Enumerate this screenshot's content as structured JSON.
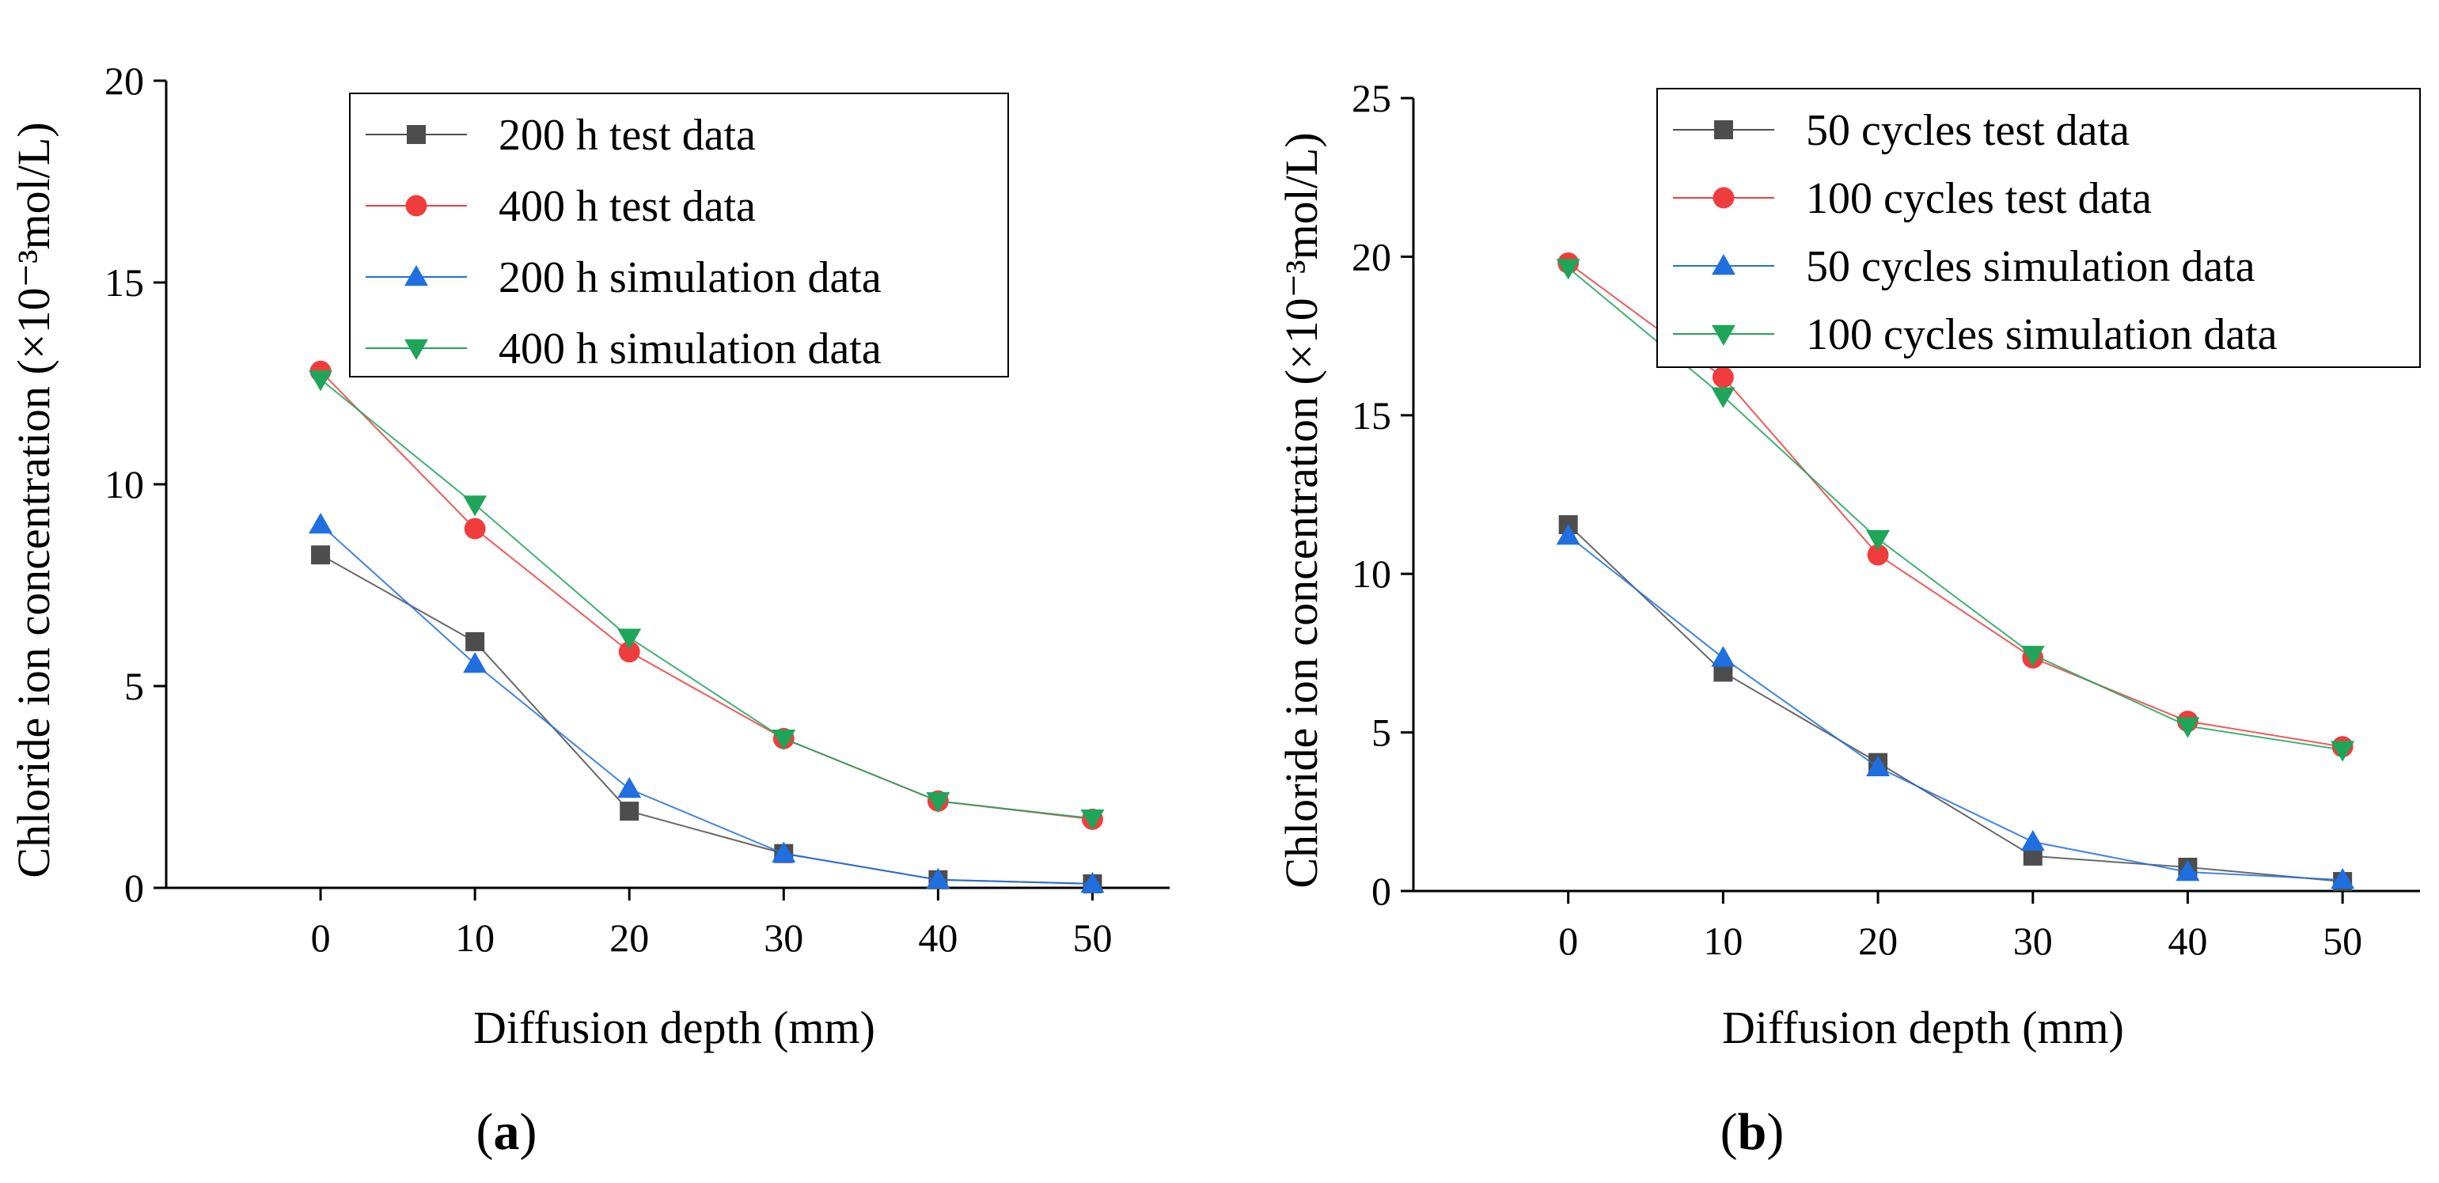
{
  "chart_data": [
    {
      "type": "line",
      "panel_label": "a",
      "xlabel": "Diffusion depth (mm)",
      "ylabel": "Chloride ion concentration (×10⁻³mol/L)",
      "xlim": [
        -10,
        55
      ],
      "ylim": [
        0,
        20
      ],
      "xticks": [
        0,
        10,
        20,
        30,
        40,
        50
      ],
      "yticks": [
        0,
        5,
        10,
        15,
        20
      ],
      "x": [
        0,
        10,
        20,
        30,
        40,
        50
      ],
      "legend_position": "top-right",
      "grid": false,
      "series": [
        {
          "name": "200 h test data",
          "marker": "square",
          "color": "#4d4d4d",
          "values": [
            8.25,
            6.1,
            1.9,
            0.85,
            0.2,
            0.1
          ]
        },
        {
          "name": "400 h test data",
          "marker": "circle",
          "color": "#f03c3c",
          "values": [
            12.8,
            8.9,
            5.85,
            3.7,
            2.15,
            1.7
          ]
        },
        {
          "name": "200 h simulation data",
          "marker": "triangle-up",
          "color": "#1f6fe0",
          "values": [
            9.0,
            5.55,
            2.45,
            0.85,
            0.2,
            0.1
          ]
        },
        {
          "name": "400 h simulation data",
          "marker": "triangle-down",
          "color": "#1fa55a",
          "values": [
            12.6,
            9.5,
            6.2,
            3.7,
            2.15,
            1.72
          ]
        }
      ]
    },
    {
      "type": "line",
      "panel_label": "b",
      "xlabel": "Diffusion depth (mm)",
      "ylabel": "Chloride ion concentration (×10⁻³mol/L)",
      "xlim": [
        -10,
        55
      ],
      "ylim": [
        0,
        25
      ],
      "xticks": [
        0,
        10,
        20,
        30,
        40,
        50
      ],
      "yticks": [
        0,
        5,
        10,
        15,
        20,
        25
      ],
      "x": [
        0,
        10,
        20,
        30,
        40,
        50
      ],
      "legend_position": "top-right",
      "grid": false,
      "series": [
        {
          "name": "50 cycles test data",
          "marker": "square",
          "color": "#4d4d4d",
          "values": [
            11.55,
            6.9,
            4.05,
            1.1,
            0.75,
            0.3
          ]
        },
        {
          "name": "100 cycles test data",
          "marker": "circle",
          "color": "#f03c3c",
          "values": [
            19.8,
            16.2,
            10.6,
            7.35,
            5.35,
            4.55
          ]
        },
        {
          "name": "50 cycles simulation data",
          "marker": "triangle-up",
          "color": "#1f6fe0",
          "values": [
            11.2,
            7.35,
            3.9,
            1.55,
            0.6,
            0.35
          ]
        },
        {
          "name": "100 cycles simulation data",
          "marker": "triangle-down",
          "color": "#1fa55a",
          "values": [
            19.65,
            15.6,
            11.1,
            7.45,
            5.2,
            4.45
          ]
        }
      ]
    }
  ]
}
